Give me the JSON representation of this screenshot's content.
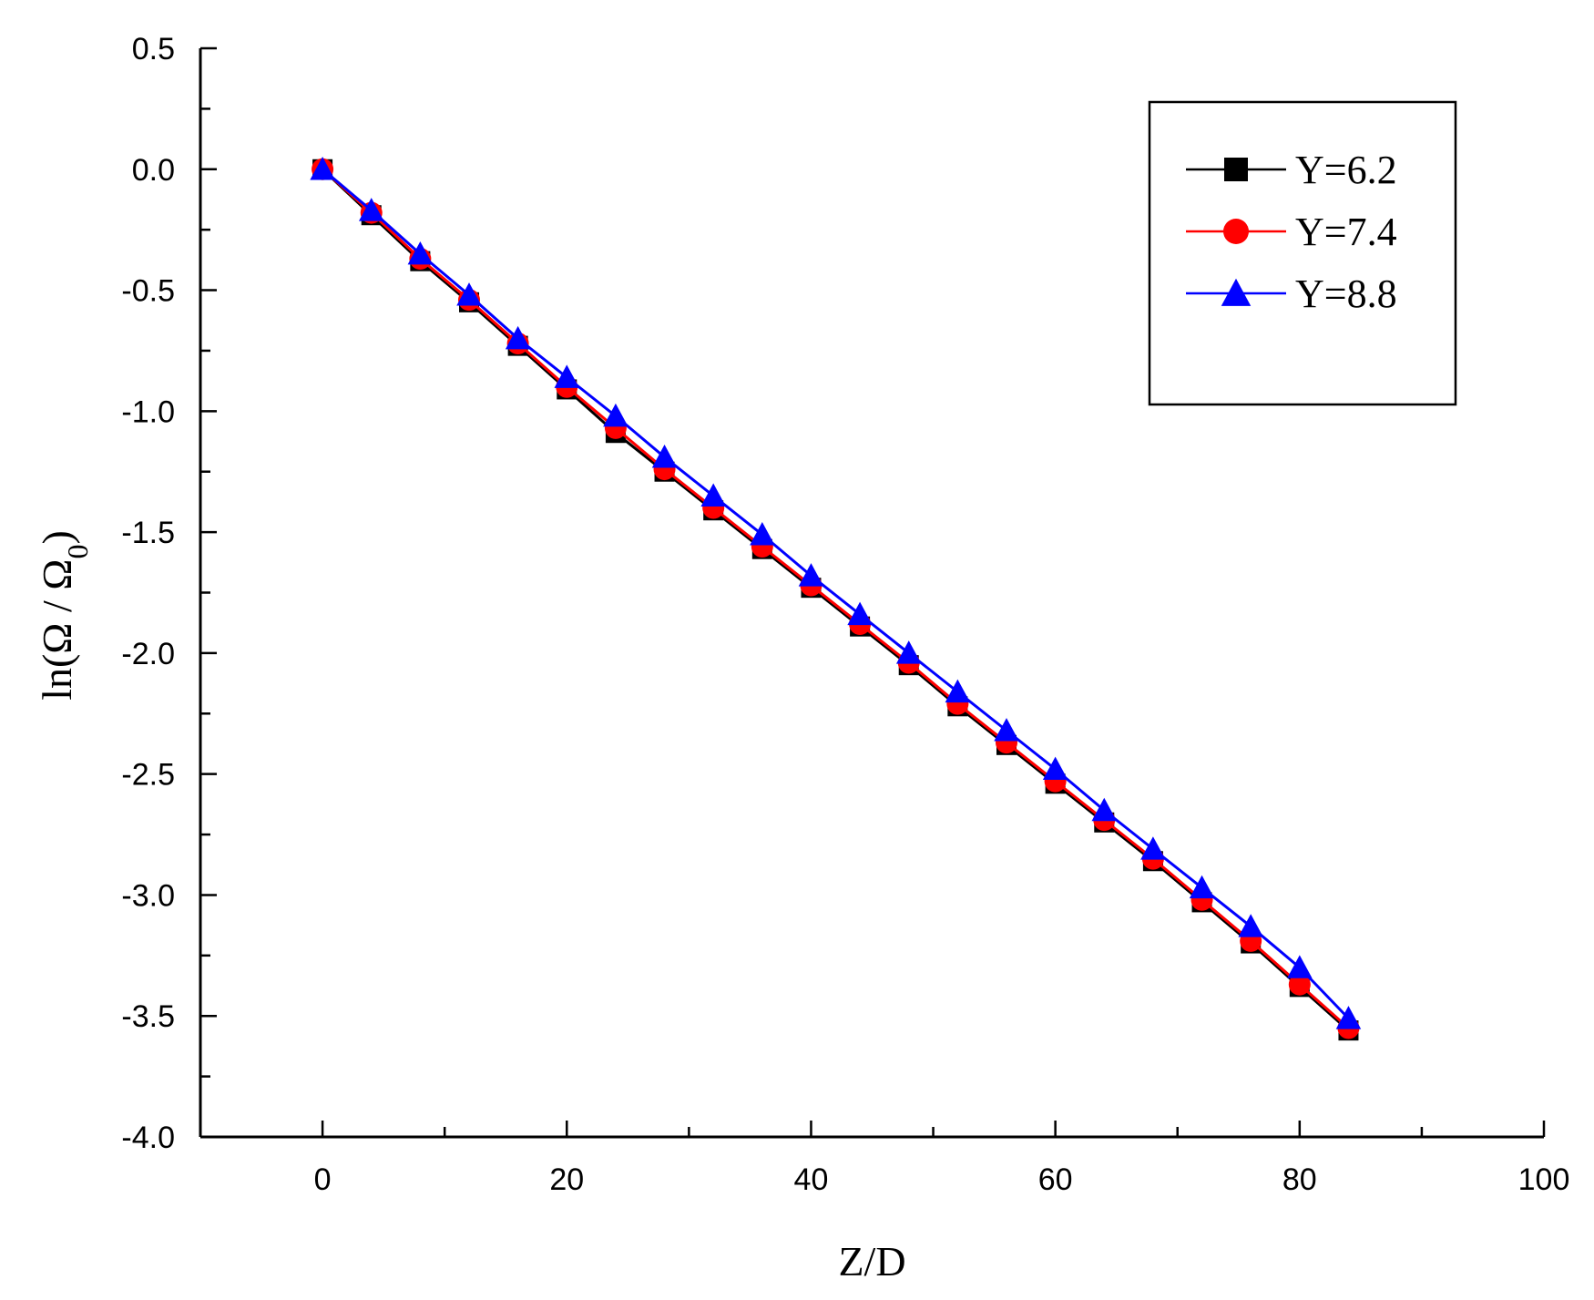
{
  "chart_data": {
    "type": "line",
    "title": "",
    "xlabel": "Z/D",
    "ylabel": {
      "prefix": "ln(",
      "omega": "Ω",
      "slash": " / ",
      "omega0": "Ω",
      "sub": "0",
      "suffix": ")"
    },
    "xlim": [
      -10,
      100
    ],
    "ylim": [
      -4.0,
      0.5
    ],
    "x_ticks": [
      0,
      20,
      40,
      60,
      80,
      100
    ],
    "x_tick_labels": [
      "0",
      "20",
      "40",
      "60",
      "80",
      "100"
    ],
    "y_ticks": [
      0.5,
      0.0,
      -0.5,
      -1.0,
      -1.5,
      -2.0,
      -2.5,
      -3.0,
      -3.5,
      -4.0
    ],
    "y_tick_labels": [
      "0.5",
      "0.0",
      "-0.5",
      "-1.0",
      "-1.5",
      "-2.0",
      "-2.5",
      "-3.0",
      "-3.5",
      "-4.0"
    ],
    "grid": false,
    "legend_position": "top-right",
    "x": [
      0,
      4,
      8,
      12,
      16,
      20,
      24,
      28,
      32,
      36,
      40,
      44,
      48,
      52,
      56,
      60,
      64,
      68,
      72,
      76,
      80,
      84
    ],
    "series": [
      {
        "name": "Y=6.2",
        "color": "#000000",
        "marker": "square",
        "values": [
          0.0,
          -0.19,
          -0.38,
          -0.55,
          -0.73,
          -0.91,
          -1.09,
          -1.25,
          -1.41,
          -1.57,
          -1.73,
          -1.89,
          -2.05,
          -2.22,
          -2.38,
          -2.54,
          -2.7,
          -2.86,
          -3.03,
          -3.2,
          -3.38,
          -3.56
        ]
      },
      {
        "name": "Y=7.4",
        "color": "#ff0000",
        "marker": "circle",
        "values": [
          0.0,
          -0.18,
          -0.37,
          -0.54,
          -0.72,
          -0.9,
          -1.07,
          -1.24,
          -1.4,
          -1.56,
          -1.72,
          -1.88,
          -2.04,
          -2.21,
          -2.37,
          -2.53,
          -2.69,
          -2.85,
          -3.02,
          -3.19,
          -3.37,
          -3.55
        ]
      },
      {
        "name": "Y=8.8",
        "color": "#0000ff",
        "marker": "triangle",
        "values": [
          0.0,
          -0.17,
          -0.35,
          -0.52,
          -0.7,
          -0.86,
          -1.02,
          -1.19,
          -1.35,
          -1.51,
          -1.68,
          -1.84,
          -2.0,
          -2.16,
          -2.32,
          -2.48,
          -2.65,
          -2.81,
          -2.97,
          -3.13,
          -3.3,
          -3.51
        ]
      }
    ]
  }
}
